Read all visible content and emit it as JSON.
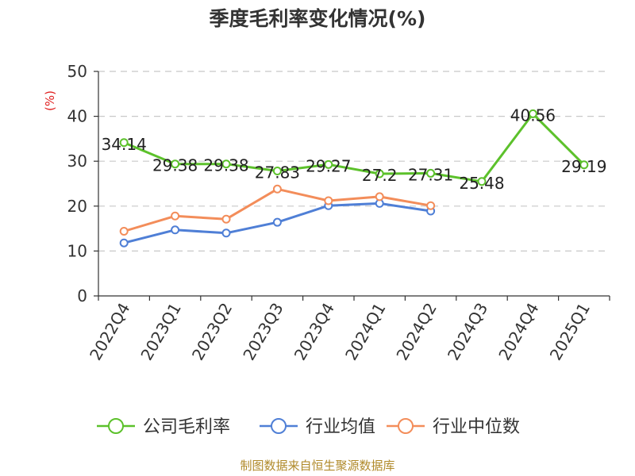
{
  "chart_data": {
    "type": "line",
    "title": "季度毛利率变化情况(%)",
    "ylabel": "(%)",
    "xlabel": "",
    "ylim": [
      0,
      50
    ],
    "yticks": [
      0,
      10,
      20,
      30,
      40,
      50
    ],
    "grid": true,
    "legend_position": "bottom",
    "categories": [
      "2022Q4",
      "2023Q1",
      "2023Q2",
      "2023Q3",
      "2023Q4",
      "2024Q1",
      "2024Q2",
      "2024Q3",
      "2024Q4",
      "2025Q1"
    ],
    "series": [
      {
        "name": "公司毛利率",
        "color": "#5cc12b",
        "show_labels": true,
        "values": [
          34.14,
          29.38,
          29.38,
          27.83,
          29.27,
          27.2,
          27.31,
          25.48,
          40.56,
          29.19
        ]
      },
      {
        "name": "行业均值",
        "color": "#4f7fd6",
        "show_labels": false,
        "values": [
          11.8,
          14.7,
          14.0,
          16.4,
          20.1,
          20.6,
          18.9,
          null,
          null,
          null
        ]
      },
      {
        "name": "行业中位数",
        "color": "#f38d5a",
        "show_labels": false,
        "values": [
          14.4,
          17.8,
          17.1,
          23.8,
          21.2,
          22.1,
          20.1,
          null,
          null,
          null
        ]
      }
    ]
  },
  "source_text": "制图数据来自恒生聚源数据库"
}
